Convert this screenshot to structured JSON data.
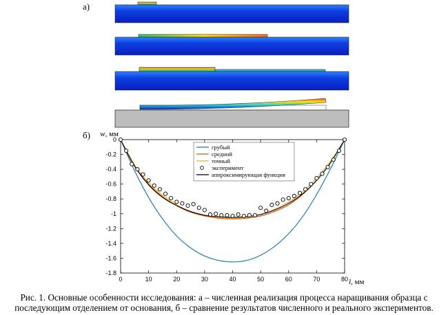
{
  "panels": {
    "a": "а)",
    "b": "б)"
  },
  "panel_a": {
    "description_colors": {
      "substrate_deep": "#0a1fbf",
      "substrate_light": "#2f7fff",
      "support": "#bdbdbd",
      "warm": "#ff3b1f",
      "yellow": "#ffe100",
      "green": "#31c46b",
      "cyan": "#27d3e0"
    }
  },
  "chart_data": {
    "type": "line",
    "xlabel": "l",
    "xunit": ", мм",
    "ylabel": "w",
    "yunit": ", мм",
    "xlim": [
      0,
      80
    ],
    "ylim": [
      -1.8,
      0
    ],
    "xticks": [
      0,
      10,
      20,
      30,
      40,
      50,
      60,
      70,
      80
    ],
    "yticks": [
      0,
      -0.2,
      -0.4,
      -0.6,
      -0.8,
      -1,
      -1.2,
      -1.4,
      -1.6,
      -1.8
    ],
    "ytick_labels": [
      "0",
      "-0.2",
      "-0.4",
      "-0.6",
      "-0.8",
      "-1",
      "-1.2",
      "-1.4",
      "-1.6",
      "-1.8"
    ],
    "legend": {
      "placement": "top-center",
      "entries": [
        {
          "label": "грубый",
          "color": "#1f77b4",
          "style": "line"
        },
        {
          "label": "средний",
          "color": "#d95319",
          "style": "line"
        },
        {
          "label": "точный",
          "color": "#edb120",
          "style": "line"
        },
        {
          "label": "эксперимент",
          "color": "#000000",
          "style": "marker"
        },
        {
          "label": "аппроксимирующая функция",
          "color": "#000000",
          "style": "line"
        }
      ]
    },
    "series": [
      {
        "name": "грубый",
        "color": "#1f77b4",
        "x": [
          0,
          5,
          10,
          15,
          20,
          25,
          30,
          35,
          40,
          45,
          50,
          55,
          60,
          65,
          70,
          75,
          80
        ],
        "y": [
          0,
          -0.42,
          -0.78,
          -1.07,
          -1.3,
          -1.46,
          -1.57,
          -1.63,
          -1.65,
          -1.63,
          -1.56,
          -1.44,
          -1.27,
          -1.04,
          -0.74,
          -0.39,
          0
        ]
      },
      {
        "name": "средний",
        "color": "#d95319",
        "x": [
          0,
          5,
          10,
          15,
          20,
          25,
          30,
          35,
          40,
          45,
          50,
          55,
          60,
          65,
          70,
          75,
          80
        ],
        "y": [
          0,
          -0.36,
          -0.6,
          -0.77,
          -0.89,
          -0.98,
          -1.03,
          -1.06,
          -1.07,
          -1.06,
          -1.03,
          -0.97,
          -0.88,
          -0.74,
          -0.55,
          -0.31,
          0
        ]
      },
      {
        "name": "точный",
        "color": "#edb120",
        "x": [
          0,
          5,
          10,
          15,
          20,
          25,
          30,
          35,
          40,
          45,
          50,
          55,
          60,
          65,
          70,
          75,
          80
        ],
        "y": [
          0,
          -0.34,
          -0.58,
          -0.75,
          -0.88,
          -0.97,
          -1.02,
          -1.05,
          -1.06,
          -1.05,
          -1.01,
          -0.94,
          -0.84,
          -0.7,
          -0.52,
          -0.29,
          0
        ]
      },
      {
        "name": "аппроксимирующая функция",
        "color": "#000000",
        "x": [
          0,
          5,
          10,
          15,
          20,
          25,
          30,
          35,
          40,
          45,
          50,
          55,
          60,
          65,
          70,
          75,
          80
        ],
        "y": [
          0,
          -0.36,
          -0.61,
          -0.78,
          -0.89,
          -0.97,
          -1.02,
          -1.04,
          -1.05,
          -1.04,
          -1.01,
          -0.95,
          -0.86,
          -0.73,
          -0.55,
          -0.31,
          0
        ]
      },
      {
        "name": "эксперимент",
        "color": "#000000",
        "marker": "circle",
        "x": [
          0,
          2,
          4,
          6,
          8,
          10,
          12,
          14,
          16,
          18,
          20,
          22,
          24,
          26,
          28,
          30,
          32,
          34,
          36,
          38,
          40,
          42,
          44,
          46,
          48,
          50,
          52,
          54,
          56,
          58,
          60,
          62,
          64,
          66,
          68,
          70,
          72,
          74,
          76,
          78,
          80
        ],
        "y": [
          0,
          -0.15,
          -0.33,
          -0.4,
          -0.47,
          -0.55,
          -0.62,
          -0.67,
          -0.73,
          -0.79,
          -0.84,
          -0.86,
          -0.89,
          -0.87,
          -0.92,
          -0.95,
          -1.01,
          -1.0,
          -1.02,
          -1.02,
          -1.03,
          -1.01,
          -1.03,
          -1.02,
          -1.02,
          -0.92,
          -0.96,
          -0.88,
          -0.86,
          -0.81,
          -0.79,
          -0.76,
          -0.72,
          -0.67,
          -0.6,
          -0.52,
          -0.46,
          -0.37,
          -0.27,
          -0.15,
          0
        ]
      }
    ]
  },
  "caption": {
    "line1": "Рис. 1. Основные особенности исследования: а – численная реализация процесса наращивания образца с",
    "line2": "последующим отделением от основания, б – сравнение результатов численного и реального экспериментов."
  }
}
